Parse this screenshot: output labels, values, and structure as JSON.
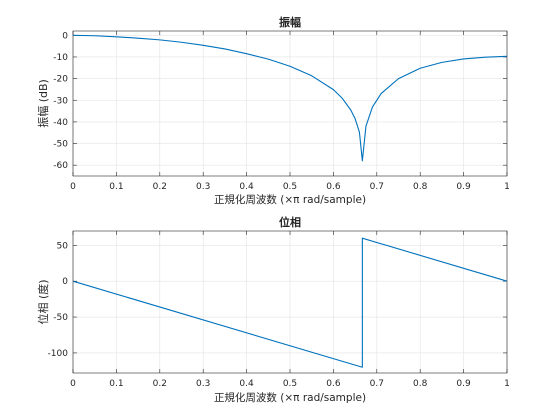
{
  "figure": {
    "background": "#ffffff",
    "line_color": "#0072bd",
    "grid_color": "#e3e3e3",
    "axis_color": "#262626"
  },
  "chart_data": [
    {
      "type": "line",
      "title": "振幅",
      "xlabel": "正規化周波数 (×π rad/sample)",
      "ylabel": "振幅 (dB)",
      "xlim": [
        0,
        1
      ],
      "ylim": [
        -65,
        2
      ],
      "xticks": [
        0,
        0.1,
        0.2,
        0.3,
        0.4,
        0.5,
        0.6,
        0.7,
        0.8,
        0.9,
        1
      ],
      "xtick_labels": [
        "0",
        "0.1",
        "0.2",
        "0.3",
        "0.4",
        "0.5",
        "0.6",
        "0.7",
        "0.8",
        "0.9",
        "1"
      ],
      "yticks": [
        0,
        -10,
        -20,
        -30,
        -40,
        -50,
        -60
      ],
      "ytick_labels": [
        "0",
        "-10",
        "-20",
        "-30",
        "-40",
        "-50",
        "-60"
      ],
      "grid": true,
      "series": [
        {
          "x": [
            0,
            0.05,
            0.1,
            0.15,
            0.2,
            0.25,
            0.3,
            0.35,
            0.4,
            0.45,
            0.5,
            0.55,
            0.6,
            0.62,
            0.64,
            0.65,
            0.66,
            0.6667,
            0.675,
            0.69,
            0.71,
            0.75,
            0.8,
            0.85,
            0.9,
            0.95,
            1.0
          ],
          "y": [
            0,
            -0.2,
            -0.7,
            -1.3,
            -2.1,
            -3.2,
            -4.6,
            -6.3,
            -8.5,
            -11.0,
            -14.3,
            -18.7,
            -25.1,
            -29.0,
            -34.5,
            -38.5,
            -44.8,
            -58.0,
            -42.0,
            -33.1,
            -26.9,
            -20.0,
            -15.2,
            -12.5,
            -10.9,
            -10.1,
            -9.7
          ]
        }
      ]
    },
    {
      "type": "line",
      "title": "位相",
      "xlabel": "正規化周波数 (×π rad/sample)",
      "ylabel": "位相 (度)",
      "xlim": [
        0,
        1
      ],
      "ylim": [
        -128,
        70
      ],
      "xticks": [
        0,
        0.1,
        0.2,
        0.3,
        0.4,
        0.5,
        0.6,
        0.7,
        0.8,
        0.9,
        1
      ],
      "xtick_labels": [
        "0",
        "0.1",
        "0.2",
        "0.3",
        "0.4",
        "0.5",
        "0.6",
        "0.7",
        "0.8",
        "0.9",
        "1"
      ],
      "yticks": [
        50,
        0,
        -50,
        -100
      ],
      "ytick_labels": [
        "50",
        "0",
        "-50",
        "-100"
      ],
      "grid": true,
      "series": [
        {
          "x": [
            0,
            0.6667,
            0.6667,
            1.0
          ],
          "y": [
            0,
            -120,
            60,
            0
          ]
        }
      ]
    }
  ]
}
